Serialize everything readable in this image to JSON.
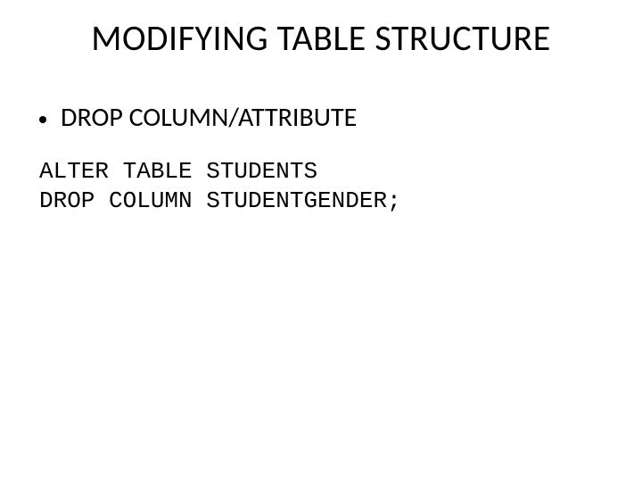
{
  "slide": {
    "title": "MODIFYING TABLE STRUCTURE",
    "bullet": "DROP COLUMN/ATTRIBUTE",
    "code_line1": "ALTER TABLE STUDENTS",
    "code_line2": "DROP COLUMN STUDENTGENDER;",
    "title_fontsize": 40,
    "bullet_fontsize": 30,
    "code_fontsize": 26,
    "text_color": "#000000",
    "background_color": "#ffffff"
  }
}
